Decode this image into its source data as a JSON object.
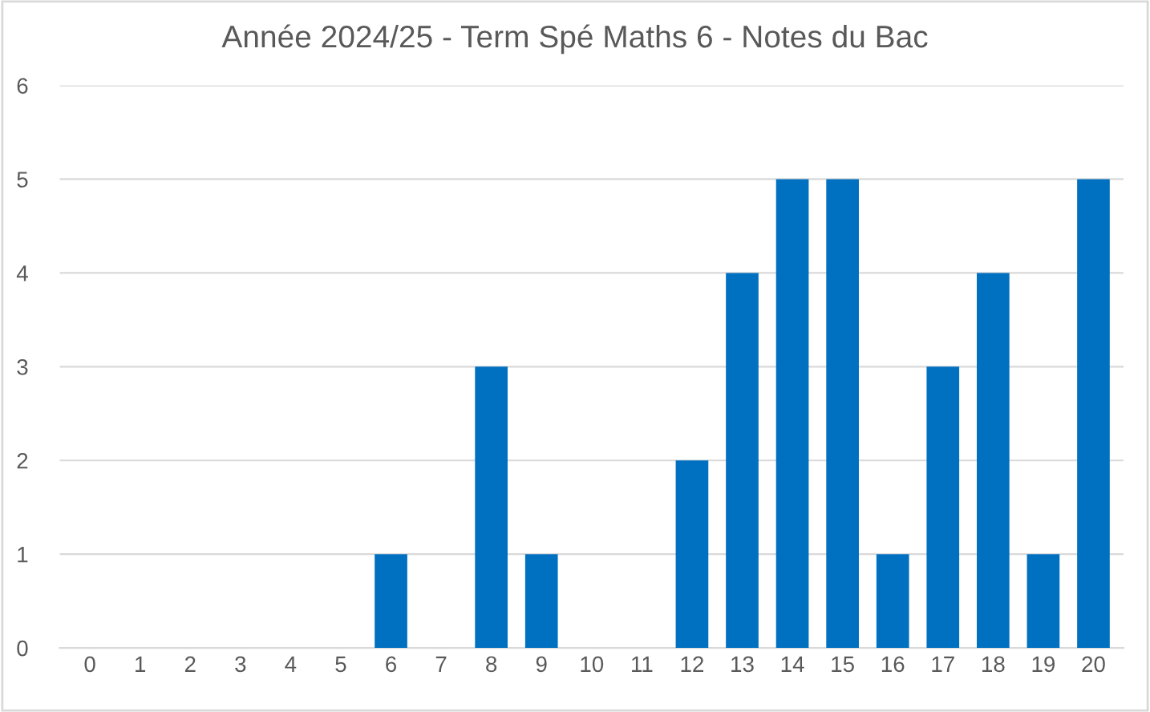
{
  "chart_data": {
    "type": "bar",
    "title": "Année 2024/25 - Term Spé Maths 6 - Notes du Bac",
    "categories": [
      "0",
      "1",
      "2",
      "3",
      "4",
      "5",
      "6",
      "7",
      "8",
      "9",
      "10",
      "11",
      "12",
      "13",
      "14",
      "15",
      "16",
      "17",
      "18",
      "19",
      "20"
    ],
    "values": [
      0,
      0,
      0,
      0,
      0,
      0,
      1,
      0,
      3,
      1,
      0,
      0,
      2,
      4,
      5,
      5,
      1,
      3,
      4,
      1,
      5
    ],
    "color": "#0070c0",
    "ylim": [
      0,
      6
    ],
    "yticks": [
      0,
      1,
      2,
      3,
      4,
      5,
      6
    ],
    "grid": "y",
    "legend": false
  }
}
